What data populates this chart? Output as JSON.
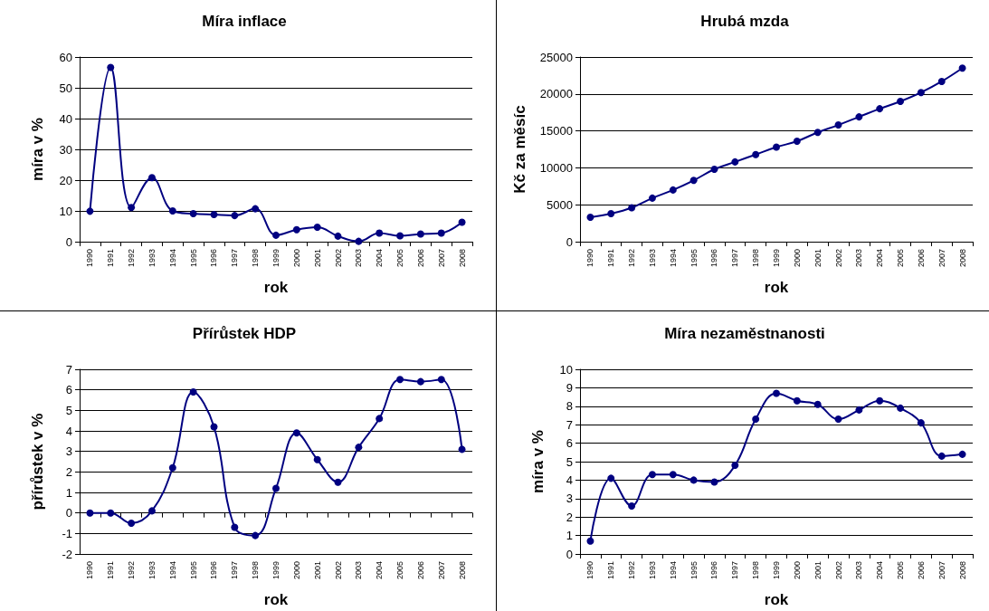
{
  "chart_data": [
    {
      "type": "line",
      "title": "Míra inflace",
      "xlabel": "rok",
      "ylabel": "míra v %",
      "categories": [
        "1990",
        "1991",
        "1992",
        "1993",
        "1994",
        "1995",
        "1996",
        "1997",
        "1998",
        "1999",
        "2000",
        "2001",
        "2002",
        "2003",
        "2004",
        "2005",
        "2006",
        "2007",
        "2008"
      ],
      "series": [
        {
          "color": "#000080",
          "values": [
            9.9,
            56.6,
            11.1,
            20.8,
            10.0,
            9.1,
            8.8,
            8.5,
            10.7,
            2.1,
            3.9,
            4.7,
            1.8,
            0.1,
            2.8,
            1.9,
            2.5,
            2.8,
            6.3
          ]
        }
      ],
      "ylim": [
        0,
        60
      ],
      "yticks": [
        0,
        10,
        20,
        30,
        40,
        50,
        60
      ],
      "grid": "y",
      "marker": "circle",
      "line_style": "solid"
    },
    {
      "type": "line",
      "title": "Hrubá mzda",
      "xlabel": "rok",
      "ylabel": "Kč za měsíc",
      "categories": [
        "1990",
        "1991",
        "1992",
        "1993",
        "1994",
        "1995",
        "1996",
        "1997",
        "1998",
        "1999",
        "2000",
        "2001",
        "2002",
        "2003",
        "2004",
        "2005",
        "2006",
        "2007",
        "2008"
      ],
      "series": [
        {
          "color": "#000080",
          "values": [
            3300,
            3800,
            4600,
            5900,
            7000,
            8300,
            9800,
            10800,
            11800,
            12800,
            13600,
            14800,
            15800,
            16900,
            18000,
            19000,
            20200,
            21700,
            23500
          ]
        }
      ],
      "ylim": [
        0,
        25000
      ],
      "yticks": [
        0,
        5000,
        10000,
        15000,
        20000,
        25000
      ],
      "grid": "y",
      "marker": "circle",
      "line_style": "solid"
    },
    {
      "type": "line",
      "title": "Přírůstek HDP",
      "xlabel": "rok",
      "ylabel": "přírůstek v %",
      "categories": [
        "1990",
        "1991",
        "1992",
        "1993",
        "1994",
        "1995",
        "1996",
        "1997",
        "1998",
        "1999",
        "2000",
        "2001",
        "2002",
        "2003",
        "2004",
        "2005",
        "2006",
        "2007",
        "2008"
      ],
      "series": [
        {
          "color": "#000080",
          "values": [
            0,
            0,
            -0.5,
            0.1,
            2.2,
            5.9,
            4.2,
            -0.7,
            -1.1,
            1.2,
            3.9,
            2.6,
            1.5,
            3.2,
            4.6,
            6.5,
            6.4,
            6.5,
            3.1
          ]
        }
      ],
      "ylim": [
        -2,
        7
      ],
      "yticks": [
        -2,
        -1,
        0,
        1,
        2,
        3,
        4,
        5,
        6,
        7
      ],
      "grid": "y",
      "marker": "circle",
      "line_style": "solid"
    },
    {
      "type": "line",
      "title": "Míra nezaměstnanosti",
      "xlabel": "rok",
      "ylabel": "míra v %",
      "categories": [
        "1990",
        "1991",
        "1992",
        "1993",
        "1994",
        "1995",
        "1996",
        "1997",
        "1998",
        "1999",
        "2000",
        "2001",
        "2002",
        "2003",
        "2004",
        "2005",
        "2006",
        "2007",
        "2008"
      ],
      "series": [
        {
          "color": "#000080",
          "values": [
            0.7,
            4.1,
            2.6,
            4.3,
            4.3,
            4.0,
            3.9,
            4.8,
            7.3,
            8.7,
            8.3,
            8.1,
            7.3,
            7.8,
            8.3,
            7.9,
            7.1,
            5.3,
            5.4
          ]
        }
      ],
      "ylim": [
        0,
        10
      ],
      "yticks": [
        0,
        1,
        2,
        3,
        4,
        5,
        6,
        7,
        8,
        9,
        10
      ],
      "grid": "y",
      "marker": "circle",
      "line_style": "solid"
    }
  ]
}
